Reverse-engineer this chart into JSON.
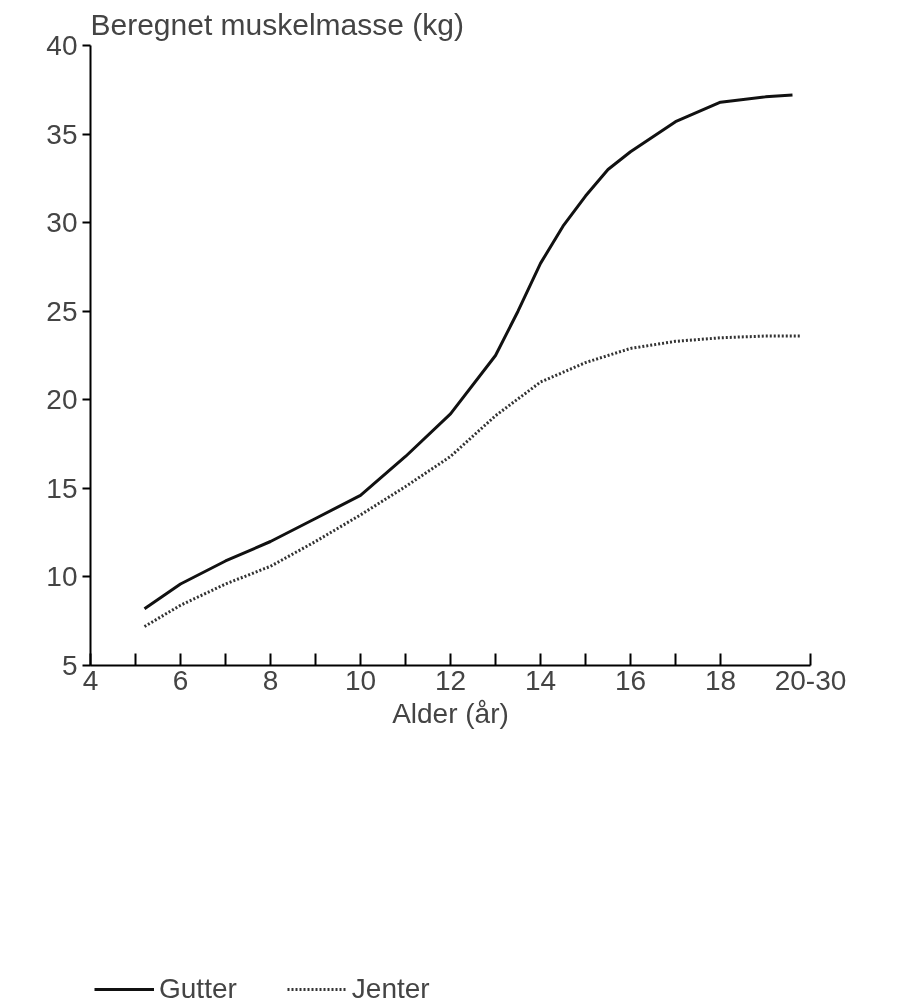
{
  "chart_data": {
    "type": "line",
    "title": "Beregnet muskelmasse (kg)",
    "xlabel": "Alder (år)",
    "xlim": [
      4,
      20
    ],
    "xticks": [
      4,
      {
        "value": 5,
        "label": null
      },
      6,
      {
        "value": 7,
        "label": null
      },
      8,
      {
        "value": 9,
        "label": null
      },
      10,
      {
        "value": 11,
        "label": null
      },
      12,
      {
        "value": 13,
        "label": null
      },
      14,
      {
        "value": 15,
        "label": null
      },
      16,
      {
        "value": 17,
        "label": null
      },
      18,
      {
        "value": 20,
        "label": "20-30"
      }
    ],
    "ylim": [
      5,
      40
    ],
    "yticks": [
      5,
      10,
      15,
      20,
      25,
      30,
      35,
      40
    ],
    "grid": false,
    "legend": "bottom",
    "marker": "none",
    "series": [
      {
        "name": "Gutter",
        "color": "#111111",
        "line_style": "solid",
        "x": [
          5.2,
          6,
          7,
          8,
          9,
          10,
          11,
          12,
          13,
          13.5,
          14,
          14.5,
          15,
          15.5,
          16,
          17,
          18,
          19,
          19.6
        ],
        "values": [
          8.2,
          9.6,
          10.9,
          12.0,
          13.3,
          14.6,
          16.8,
          19.2,
          22.5,
          25,
          27.7,
          29.8,
          31.5,
          33,
          34,
          35.7,
          36.8,
          37.1,
          37.2
        ]
      },
      {
        "name": "Jenter",
        "color": "#333333",
        "line_style": "dotted",
        "x": [
          5.2,
          6,
          7,
          8,
          9,
          10,
          11,
          12,
          13,
          14,
          15,
          16,
          17,
          18,
          19,
          19.8
        ],
        "values": [
          7.2,
          8.4,
          9.6,
          10.6,
          12.0,
          13.5,
          15.1,
          16.8,
          19.1,
          21.0,
          22.1,
          22.9,
          23.3,
          23.5,
          23.6,
          23.6
        ]
      }
    ]
  }
}
